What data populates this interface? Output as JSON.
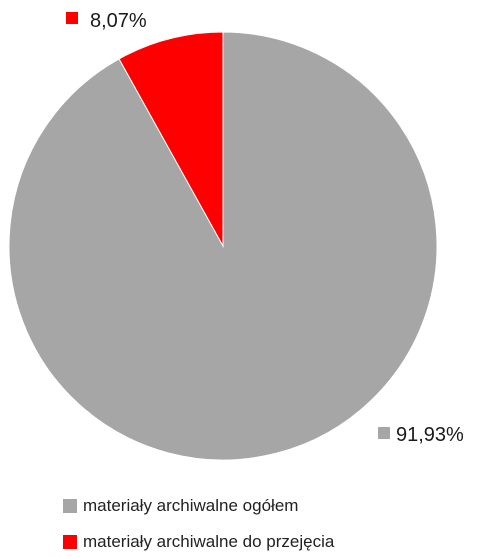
{
  "chart_data": {
    "type": "pie",
    "title": "",
    "legend_position": "bottom",
    "slices": [
      {
        "name": "materiały archiwalne ogółem",
        "value": 91.93,
        "label": "91,93%",
        "color": "#a6a6a6"
      },
      {
        "name": "materiały archiwalne do przejęcia",
        "value": 8.07,
        "label": "8,07%",
        "color": "#ff0000"
      }
    ]
  }
}
